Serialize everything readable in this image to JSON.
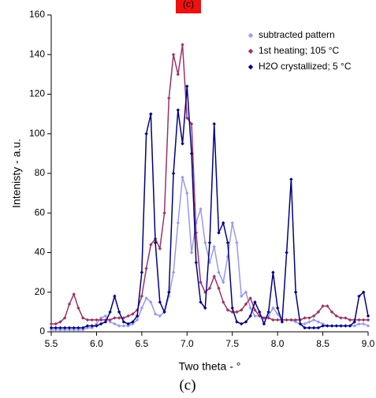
{
  "chart_data": {
    "type": "line",
    "panel_tag": "(c)",
    "caption": "(c)",
    "x_label": "Two theta - °",
    "y_label": "Intenisty - a.u.",
    "x": [
      5.5,
      5.55,
      5.6,
      5.65,
      5.7,
      5.75,
      5.8,
      5.85,
      5.9,
      5.95,
      6.0,
      6.05,
      6.1,
      6.15,
      6.2,
      6.25,
      6.3,
      6.35,
      6.4,
      6.45,
      6.5,
      6.55,
      6.6,
      6.65,
      6.7,
      6.75,
      6.8,
      6.85,
      6.9,
      6.95,
      7.0,
      7.05,
      7.1,
      7.15,
      7.2,
      7.25,
      7.3,
      7.35,
      7.4,
      7.45,
      7.5,
      7.55,
      7.6,
      7.65,
      7.7,
      7.75,
      7.8,
      7.85,
      7.9,
      7.95,
      8.0,
      8.05,
      8.1,
      8.15,
      8.2,
      8.25,
      8.3,
      8.35,
      8.4,
      8.45,
      8.5,
      8.55,
      8.6,
      8.65,
      8.7,
      8.75,
      8.8,
      8.85,
      8.9,
      8.95,
      9.0
    ],
    "series": [
      {
        "name": "subtracted pattern",
        "color": "#9999ee",
        "values": [
          1,
          1,
          1,
          1,
          1,
          1,
          1,
          1,
          2,
          2,
          4,
          7,
          8,
          5,
          4,
          3,
          3,
          3,
          4,
          6,
          12,
          17,
          15,
          9,
          8,
          10,
          18,
          30,
          55,
          78,
          70,
          40,
          55,
          62,
          45,
          35,
          43,
          30,
          25,
          38,
          55,
          45,
          18,
          20,
          12,
          8,
          8,
          7,
          8,
          12,
          9,
          6,
          6,
          6,
          5,
          4,
          4,
          5,
          6,
          5,
          4,
          3,
          3,
          3,
          3,
          3,
          3,
          3,
          4,
          4,
          3
        ]
      },
      {
        "name": "1st heating; 105 °C",
        "color": "#993366",
        "values": [
          4,
          4,
          5,
          7,
          14,
          19,
          12,
          7,
          6,
          6,
          6,
          6,
          6,
          6,
          7,
          7,
          7,
          8,
          9,
          11,
          18,
          32,
          44,
          47,
          42,
          60,
          118,
          140,
          130,
          145,
          108,
          105,
          50,
          25,
          20,
          22,
          28,
          22,
          15,
          11,
          10,
          10,
          11,
          14,
          17,
          11,
          8,
          7,
          7,
          6,
          6,
          6,
          6,
          6,
          6,
          6,
          7,
          7,
          8,
          10,
          13,
          13,
          10,
          8,
          7,
          7,
          6,
          6,
          6,
          6,
          6
        ]
      },
      {
        "name": "H2O crystallized; 5 °C",
        "color": "#000080",
        "values": [
          2,
          2,
          2,
          2,
          2,
          2,
          2,
          2,
          3,
          3,
          3,
          4,
          5,
          10,
          18,
          10,
          5,
          4,
          5,
          8,
          30,
          100,
          110,
          45,
          15,
          10,
          20,
          80,
          112,
          95,
          124,
          90,
          35,
          15,
          12,
          45,
          105,
          50,
          55,
          45,
          12,
          5,
          4,
          5,
          8,
          15,
          10,
          4,
          10,
          30,
          12,
          5,
          40,
          77,
          20,
          4,
          2,
          2,
          2,
          2,
          3,
          3,
          3,
          3,
          3,
          3,
          3,
          5,
          18,
          20,
          8
        ]
      }
    ],
    "xlim": [
      5.5,
      9.0
    ],
    "xticks": [
      5.5,
      {
        "value": 6,
        "label": "6.0"
      },
      6.5,
      {
        "value": 7,
        "label": "7.0"
      },
      7.5,
      {
        "value": 8,
        "label": "8.0"
      },
      8.5,
      {
        "value": 9,
        "label": "9.0"
      }
    ],
    "ylim": [
      0,
      160
    ],
    "yticks": [
      0,
      20,
      40,
      60,
      80,
      100,
      120,
      140,
      160
    ],
    "grid": false,
    "legend": "upper right"
  }
}
